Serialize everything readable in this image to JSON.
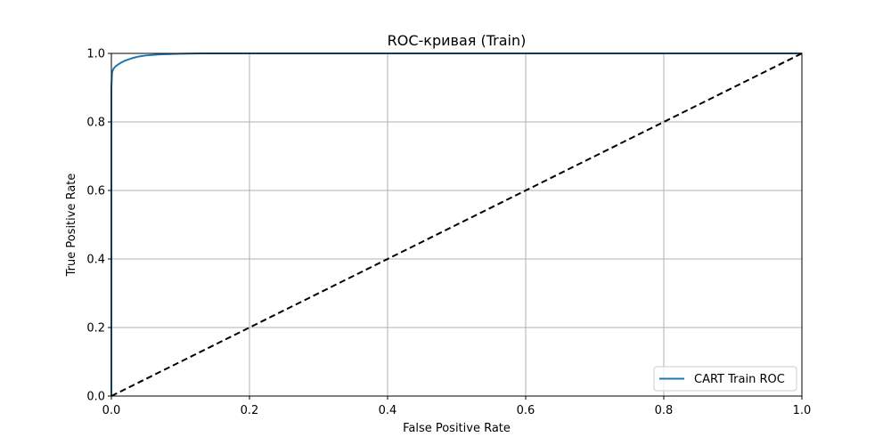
{
  "chart_data": {
    "type": "line",
    "title": "ROC-кривая (Train)",
    "xlabel": "False Positive Rate",
    "ylabel": "True Positive Rate",
    "xlim": [
      0.0,
      1.0
    ],
    "ylim": [
      0.0,
      1.0
    ],
    "xticks": [
      "0.0",
      "0.2",
      "0.4",
      "0.6",
      "0.8",
      "1.0"
    ],
    "yticks": [
      "0.0",
      "0.2",
      "0.4",
      "0.6",
      "0.8",
      "1.0"
    ],
    "grid": true,
    "legend_position": "lower-right",
    "series": [
      {
        "name": "CART Train ROC",
        "color": "#1f77b4",
        "style": "solid",
        "x": [
          0.0,
          0.0,
          0.001,
          0.003,
          0.006,
          0.01,
          0.015,
          0.02,
          0.03,
          0.04,
          0.05,
          0.07,
          0.1,
          0.13,
          0.2,
          0.4,
          0.6,
          0.8,
          1.0
        ],
        "y": [
          0.0,
          0.9,
          0.945,
          0.955,
          0.962,
          0.968,
          0.974,
          0.979,
          0.986,
          0.991,
          0.994,
          0.997,
          0.999,
          1.0,
          1.0,
          1.0,
          1.0,
          1.0,
          1.0
        ]
      },
      {
        "name": "",
        "color": "#000000",
        "style": "dashed",
        "x": [
          0.0,
          1.0
        ],
        "y": [
          0.0,
          1.0
        ]
      }
    ]
  }
}
